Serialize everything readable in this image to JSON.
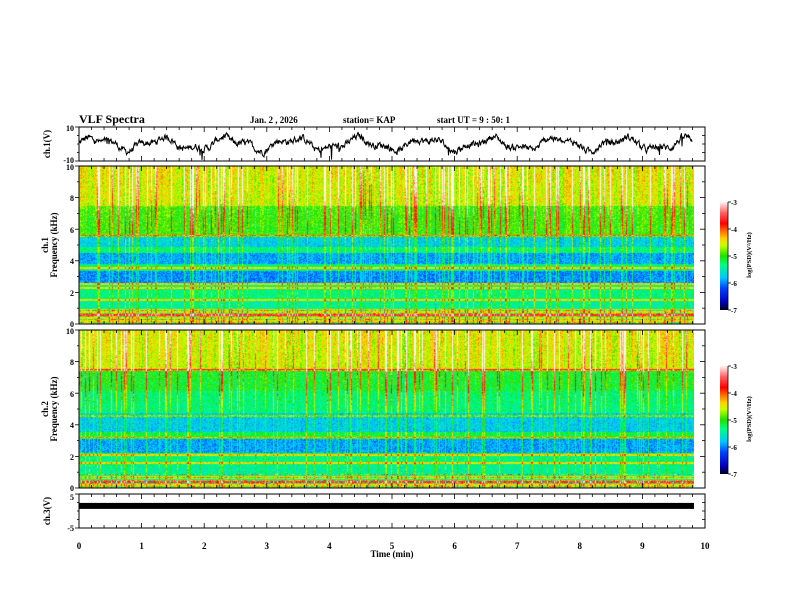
{
  "header": {
    "title": "VLF Spectra",
    "date": "Jan. 2 , 2026",
    "station": "station= KAP",
    "start": "start UT =   9 : 50: 1"
  },
  "colors": {
    "trace": "#000000",
    "axis": "#000000",
    "colormap": [
      "#000040",
      "#0000ff",
      "#00c8ff",
      "#00ff80",
      "#40ff00",
      "#ffff00",
      "#ff8000",
      "#ff0000",
      "#ffffff"
    ]
  },
  "chart_data": [
    {
      "type": "line",
      "name": "ch1-waveform",
      "ylabel": "ch.1(V)",
      "ylim": [
        -10,
        10
      ],
      "yticks": [
        "10",
        "-10"
      ],
      "xlim": [
        0,
        10
      ],
      "x_data_extent_min": [
        0,
        9.8
      ]
    },
    {
      "type": "heatmap",
      "name": "ch1-spectrogram",
      "ylabel_line1": "ch.1",
      "ylabel_line2": "Frequency (kHz)",
      "ylim": [
        0,
        10
      ],
      "yticks": [
        "0",
        "2",
        "4",
        "6",
        "8",
        "10"
      ],
      "xlim": [
        0,
        10
      ],
      "colorbar": {
        "label": "log(PSD)(V²/Hz)",
        "range": [
          -7,
          -3
        ],
        "ticks": [
          "-3",
          "-4",
          "-5",
          "-6",
          "-7"
        ]
      }
    },
    {
      "type": "heatmap",
      "name": "ch2-spectrogram",
      "ylabel_line1": "ch.2",
      "ylabel_line2": "Frequency (kHz)",
      "ylim": [
        0,
        10
      ],
      "yticks": [
        "0",
        "2",
        "4",
        "6",
        "8",
        "10"
      ],
      "xlim": [
        0,
        10
      ],
      "colorbar": {
        "label": "log(PSD)(V²/Hz)",
        "range": [
          -7,
          -3
        ],
        "ticks": [
          "-3",
          "-4",
          "-5",
          "-6",
          "-7"
        ]
      }
    },
    {
      "type": "line",
      "name": "ch3-waveform",
      "ylabel": "ch.3(V)",
      "ylim": [
        -5,
        5
      ],
      "yticks": [
        "5",
        "-5"
      ],
      "level_value": 1.5,
      "xlim": [
        0,
        10
      ]
    }
  ],
  "xaxis": {
    "label": "Time (min)",
    "ticks": [
      "0",
      "1",
      "2",
      "3",
      "4",
      "5",
      "6",
      "7",
      "8",
      "9",
      "10"
    ]
  }
}
